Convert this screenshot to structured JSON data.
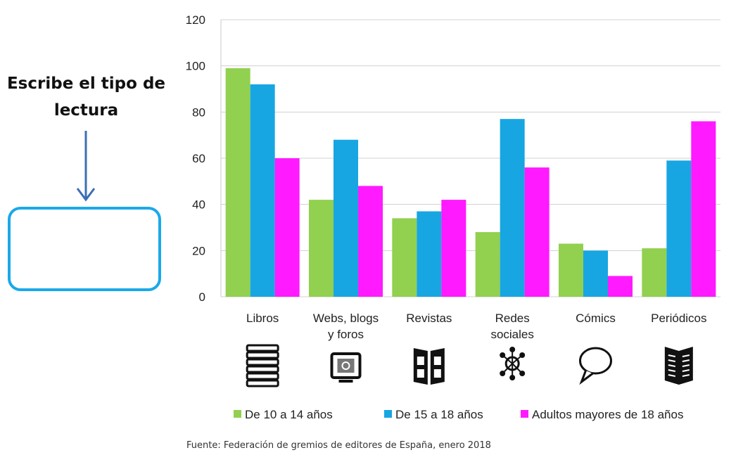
{
  "instruction": {
    "line1": "Escribe el tipo de",
    "line2": "lectura"
  },
  "source_note": "Fuente: Federación de gremios de editores de España, enero 2018",
  "chart_data": {
    "type": "bar",
    "title": "",
    "xlabel": "",
    "ylabel": "",
    "ylim": [
      0,
      120
    ],
    "yticks": [
      "0",
      "20",
      "40",
      "60",
      "80",
      "100",
      "120"
    ],
    "grid": true,
    "legend": "bottom",
    "categories": [
      [
        "Libros"
      ],
      [
        "Webs, blogs",
        "y foros"
      ],
      [
        "Revistas"
      ],
      [
        "Redes",
        "sociales"
      ],
      [
        "Cómics"
      ],
      [
        "Periódicos"
      ]
    ],
    "icons": [
      "books-stack-icon",
      "computer-web-icon",
      "magazine-icon",
      "social-network-icon",
      "speech-bubble-icon",
      "newspaper-icon"
    ],
    "series": [
      {
        "name": "De 10 a 14 años",
        "color": "#92d050",
        "values": [
          99,
          42,
          34,
          28,
          23,
          21
        ]
      },
      {
        "name": "De 15 a 18 años",
        "color": "#17a6e2",
        "values": [
          92,
          68,
          37,
          77,
          20,
          59
        ]
      },
      {
        "name": "Adultos mayores de 18 años",
        "color": "#ff1aff",
        "values": [
          60,
          48,
          42,
          56,
          9,
          76
        ]
      }
    ]
  }
}
